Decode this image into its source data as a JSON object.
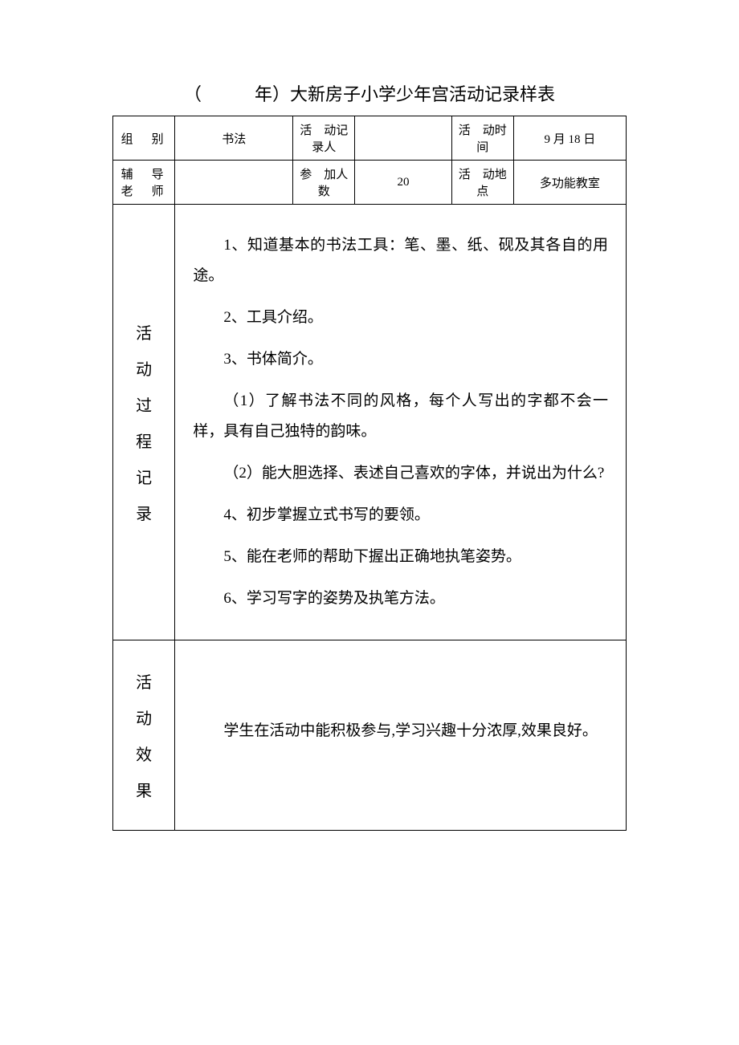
{
  "title": "（　　　年）大新房子小学少年宫活动记录样表",
  "header": {
    "row1": {
      "label1": "组　别",
      "value1": "书法",
      "label2": "活　动记录人",
      "value2": "",
      "label3": "活　动时　间",
      "value3": "9 月 18 日"
    },
    "row2": {
      "label1": "辅　导老　师",
      "value1": "",
      "label2": "参　加人　数",
      "value2": "20",
      "label3": "活　动地　点",
      "value3": "多功能教室"
    }
  },
  "process": {
    "sideLabel": {
      "c1": "活",
      "c2": "动",
      "c3": "过",
      "c4": "程",
      "c5": "记",
      "c6": "录"
    },
    "items": {
      "p1": "1、知道基本的书法工具：笔、墨、纸、砚及其各自的用途。",
      "p2": "2、工具介绍。",
      "p3": "3、书体简介。",
      "p4": "（1）了解书法不同的风格，每个人写出的字都不会一样，具有自己独特的韵味。",
      "p5": "（2）能大胆选择、表述自己喜欢的字体，并说出为什么?",
      "p6": "4、初步掌握立式书写的要领。",
      "p7": "5、能在老师的帮助下握出正确地执笔姿势。",
      "p8": "6、学习写字的姿势及执笔方法。"
    }
  },
  "effect": {
    "sideLabel": {
      "c1": "活",
      "c2": "动",
      "c3": "效",
      "c4": "果"
    },
    "text": "学生在活动中能积极参与,学习兴趣十分浓厚,效果良好。"
  }
}
